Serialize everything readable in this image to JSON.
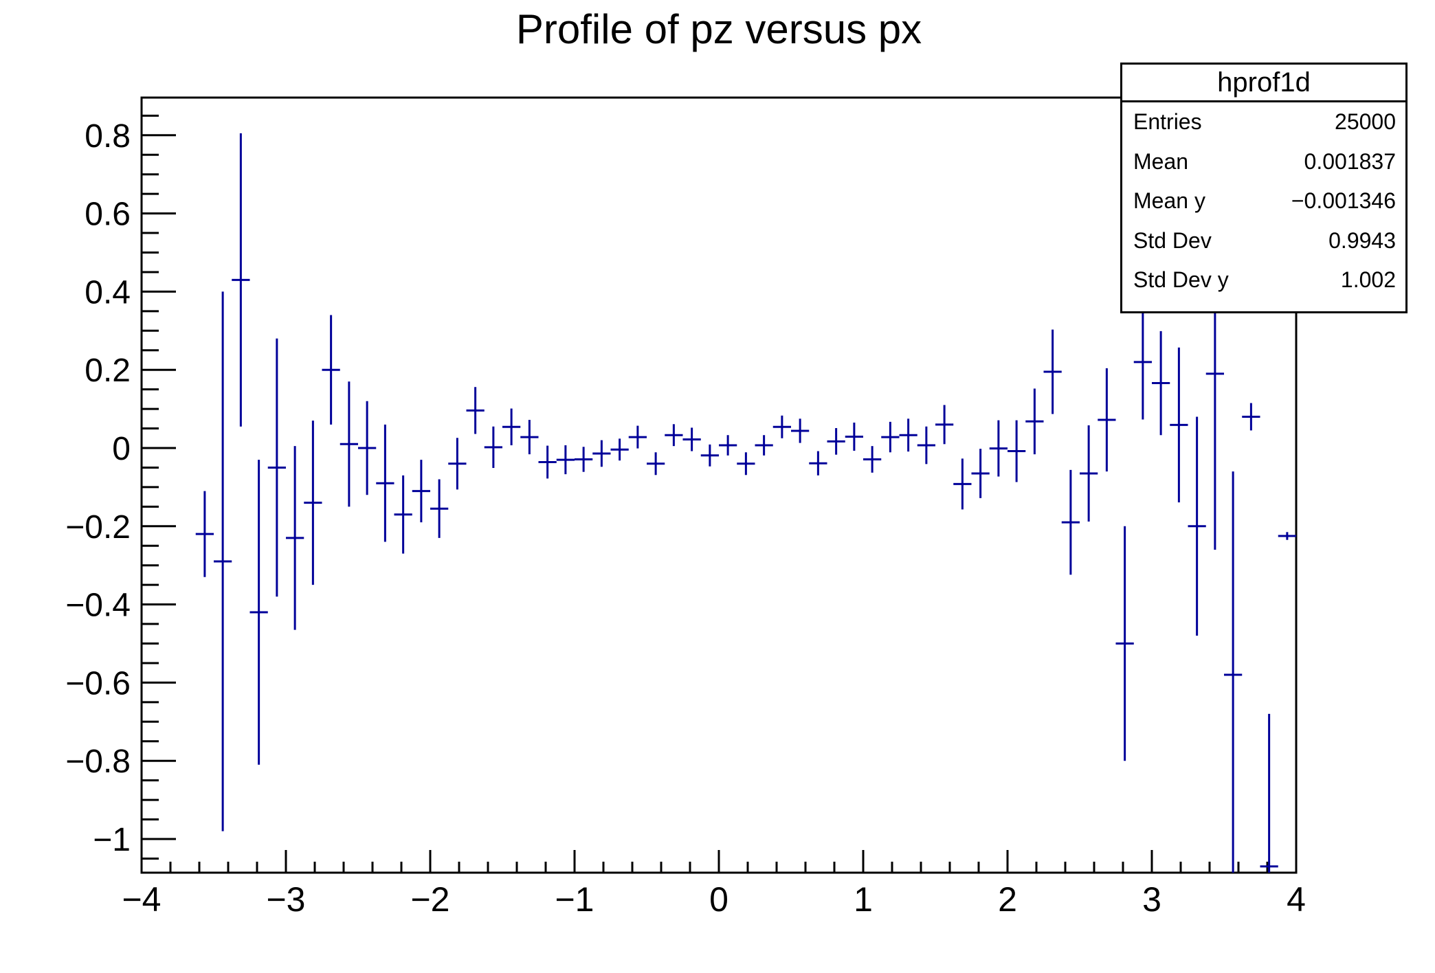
{
  "title": "Profile of pz versus px",
  "stats": {
    "header": "hprof1d",
    "rows": [
      {
        "label": "Entries",
        "value": "25000"
      },
      {
        "label": "Mean",
        "value": "0.001837"
      },
      {
        "label": "Mean y",
        "value": "−0.001346"
      },
      {
        "label": "Std Dev",
        "value": "0.9943"
      },
      {
        "label": "Std Dev y",
        "value": "1.002"
      }
    ]
  },
  "chart_data": {
    "type": "scatter",
    "subtype": "profile-histogram-with-error-bars",
    "title": "Profile of pz versus px",
    "xlabel": "",
    "ylabel": "",
    "grid": false,
    "legend": false,
    "marker_color": "#000099",
    "frame_color": "#000000",
    "xlim": [
      -4,
      4
    ],
    "ylim": [
      -1.086,
      0.896
    ],
    "x_major_ticks": [
      -4,
      -3,
      -2,
      -1,
      0,
      1,
      2,
      3,
      4
    ],
    "x_tick_labels": [
      "−4",
      "−3",
      "−2",
      "−1",
      "0",
      "1",
      "2",
      "3",
      "4"
    ],
    "x_minor_step": 0.2,
    "y_major_ticks": [
      -1.0,
      -0.8,
      -0.6,
      -0.4,
      -0.2,
      0.0,
      0.2,
      0.4,
      0.6,
      0.8
    ],
    "y_tick_labels": [
      "−1",
      "−0.8",
      "−0.6",
      "−0.4",
      "−0.2",
      "0",
      "0.2",
      "0.4",
      "0.6",
      "0.8"
    ],
    "y_minor_step": 0.05,
    "bin_width": 0.125,
    "points_format": [
      "x_bin_center",
      "y_mean",
      "y_error"
    ],
    "points": [
      [
        -3.5625,
        -0.22,
        0.11
      ],
      [
        -3.4375,
        -0.29,
        0.69
      ],
      [
        -3.3125,
        0.43,
        0.375
      ],
      [
        -3.1875,
        -0.42,
        0.39
      ],
      [
        -3.0625,
        -0.05,
        0.33
      ],
      [
        -2.9375,
        -0.23,
        0.235
      ],
      [
        -2.8125,
        -0.14,
        0.21
      ],
      [
        -2.6875,
        0.2,
        0.14
      ],
      [
        -2.5625,
        0.01,
        0.16
      ],
      [
        -2.4375,
        0.0,
        0.12
      ],
      [
        -2.3125,
        -0.09,
        0.15
      ],
      [
        -2.1875,
        -0.17,
        0.1
      ],
      [
        -2.0625,
        -0.11,
        0.08
      ],
      [
        -1.9375,
        -0.155,
        0.075
      ],
      [
        -1.8125,
        -0.04,
        0.066
      ],
      [
        -1.6875,
        0.096,
        0.06
      ],
      [
        -1.5625,
        0.002,
        0.053
      ],
      [
        -1.4375,
        0.054,
        0.047
      ],
      [
        -1.3125,
        0.028,
        0.044
      ],
      [
        -1.1875,
        -0.036,
        0.042
      ],
      [
        -1.0625,
        -0.03,
        0.037
      ],
      [
        -0.9375,
        -0.029,
        0.032
      ],
      [
        -0.8125,
        -0.014,
        0.034
      ],
      [
        -0.6875,
        -0.004,
        0.028
      ],
      [
        -0.5625,
        0.028,
        0.029
      ],
      [
        -0.4375,
        -0.04,
        0.029
      ],
      [
        -0.3125,
        0.033,
        0.028
      ],
      [
        -0.1875,
        0.022,
        0.03
      ],
      [
        -0.0625,
        -0.019,
        0.028
      ],
      [
        0.0625,
        0.007,
        0.026
      ],
      [
        0.1875,
        -0.04,
        0.029
      ],
      [
        0.3125,
        0.007,
        0.026
      ],
      [
        0.4375,
        0.054,
        0.029
      ],
      [
        0.5625,
        0.044,
        0.031
      ],
      [
        0.6875,
        -0.039,
        0.031
      ],
      [
        0.8125,
        0.017,
        0.034
      ],
      [
        0.9375,
        0.029,
        0.036
      ],
      [
        1.0625,
        -0.029,
        0.034
      ],
      [
        1.1875,
        0.028,
        0.039
      ],
      [
        1.3125,
        0.033,
        0.042
      ],
      [
        1.4375,
        0.007,
        0.048
      ],
      [
        1.5625,
        0.06,
        0.05
      ],
      [
        1.6875,
        -0.092,
        0.065
      ],
      [
        1.8125,
        -0.065,
        0.063
      ],
      [
        1.9375,
        -0.001,
        0.072
      ],
      [
        2.0625,
        -0.008,
        0.079
      ],
      [
        2.1875,
        0.068,
        0.084
      ],
      [
        2.3125,
        0.195,
        0.108
      ],
      [
        2.4375,
        -0.19,
        0.134
      ],
      [
        2.5625,
        -0.065,
        0.123
      ],
      [
        2.6875,
        0.072,
        0.132
      ],
      [
        2.8125,
        -0.5,
        0.3
      ],
      [
        2.9375,
        0.22,
        0.147
      ],
      [
        3.0625,
        0.166,
        0.133
      ],
      [
        3.1875,
        0.059,
        0.198
      ],
      [
        3.3125,
        -0.2,
        0.28
      ],
      [
        3.4375,
        0.19,
        0.45
      ],
      [
        3.5625,
        -0.58,
        0.52
      ],
      [
        3.6875,
        0.08,
        0.035
      ],
      [
        3.8125,
        -1.07,
        0.39
      ],
      [
        3.9375,
        -0.225,
        0.01
      ]
    ]
  }
}
